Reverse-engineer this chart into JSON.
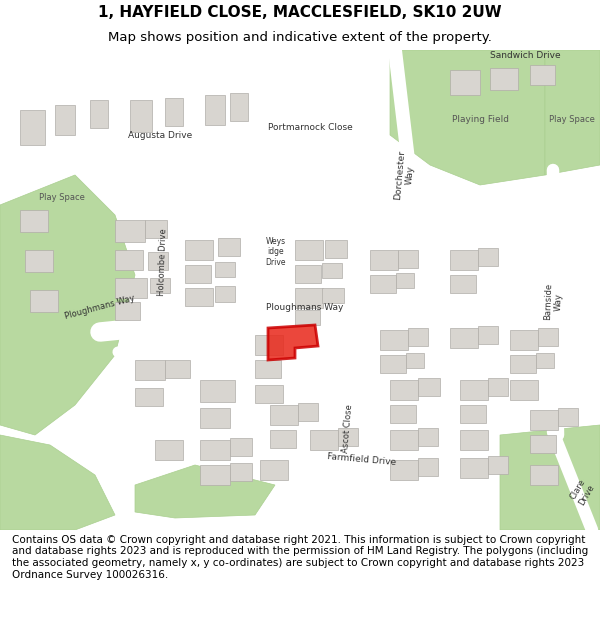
{
  "title_line1": "1, HAYFIELD CLOSE, MACCLESFIELD, SK10 2UW",
  "title_line2": "Map shows position and indicative extent of the property.",
  "footer_text": "Contains OS data © Crown copyright and database right 2021. This information is subject to Crown copyright and database rights 2023 and is reproduced with the permission of HM Land Registry. The polygons (including the associated geometry, namely x, y co-ordinates) are subject to Crown copyright and database rights 2023 Ordnance Survey 100026316.",
  "title_fontsize": 11,
  "subtitle_fontsize": 9.5,
  "footer_fontsize": 7.5,
  "map_bg": "#f0ede8",
  "road_color": "#ffffff",
  "building_color": "#d8d5d0",
  "green_color": "#b8d9a0",
  "highlight_color": "#e8271a",
  "fig_bg": "#ffffff"
}
